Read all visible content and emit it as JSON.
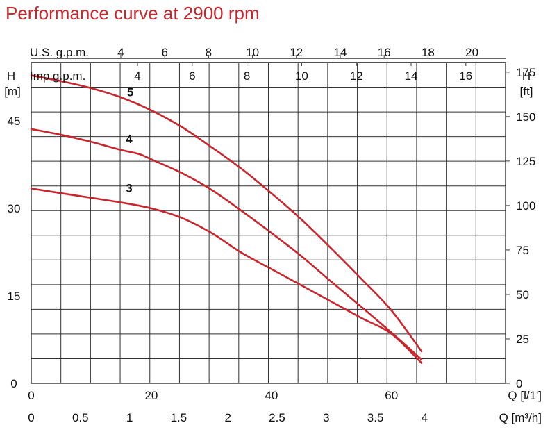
{
  "chart_data": {
    "type": "line",
    "title": "Performance curve at 2900 rpm",
    "colors": {
      "curve": "#c8262c",
      "title": "#c8262c",
      "grid": "#333333",
      "text": "#111111"
    },
    "left_axis": {
      "label_top": "H",
      "label_unit": "[m]",
      "ticks": [
        "0",
        "15",
        "30",
        "45"
      ],
      "ylim": [
        0,
        55
      ]
    },
    "right_axis": {
      "label_top": "H",
      "label_unit": "[ft]",
      "ticks": [
        "0",
        "25",
        "50",
        "75",
        "100",
        "125",
        "150",
        "175"
      ],
      "ylim_ft": [
        0,
        180.4
      ]
    },
    "x_axis_lpm": {
      "label": "Q [l/1']",
      "ticks": [
        "0",
        "20",
        "40",
        "60"
      ],
      "xlim": [
        0,
        79
      ]
    },
    "x_axis_m3h": {
      "label": "Q [m³/h]",
      "ticks": [
        "0",
        "0.5",
        "1",
        "1.5",
        "2",
        "2.5",
        "3",
        "3.5",
        "4"
      ]
    },
    "top_axis_usgpm": {
      "label": "U.S. g.p.m.",
      "ticks": [
        "4",
        "6",
        "8",
        "10",
        "12",
        "14",
        "16",
        "18",
        "20"
      ]
    },
    "top_axis_impgpm": {
      "label": "Imp g.p.m.",
      "ticks": [
        "4",
        "6",
        "8",
        "10",
        "12",
        "14",
        "16"
      ]
    },
    "series": [
      {
        "name": "5",
        "x": [
          0,
          5,
          10,
          15,
          20,
          25,
          30,
          35,
          40,
          45,
          50,
          55,
          60,
          65
        ],
        "y": [
          52.8,
          51.8,
          50.6,
          49.0,
          46.8,
          44.0,
          40.5,
          36.8,
          32.6,
          28.1,
          23.1,
          17.9,
          12.5,
          5.5
        ]
      },
      {
        "name": "4",
        "x": [
          0,
          5,
          10,
          15,
          18,
          20,
          25,
          30,
          35,
          40,
          45,
          50,
          55,
          60,
          65
        ],
        "y": [
          43.6,
          42.6,
          41.4,
          40.0,
          39.3,
          38.4,
          36.1,
          33.2,
          29.6,
          25.8,
          21.8,
          17.4,
          13.1,
          8.7,
          4.1
        ]
      },
      {
        "name": "3",
        "x": [
          0,
          5,
          10,
          15,
          20,
          25,
          30,
          35,
          40,
          45,
          50,
          55,
          60,
          65
        ],
        "y": [
          33.4,
          32.6,
          31.8,
          31.0,
          30.0,
          28.4,
          25.8,
          22.4,
          19.6,
          16.8,
          14.0,
          11.2,
          8.5,
          3.5
        ]
      }
    ]
  }
}
